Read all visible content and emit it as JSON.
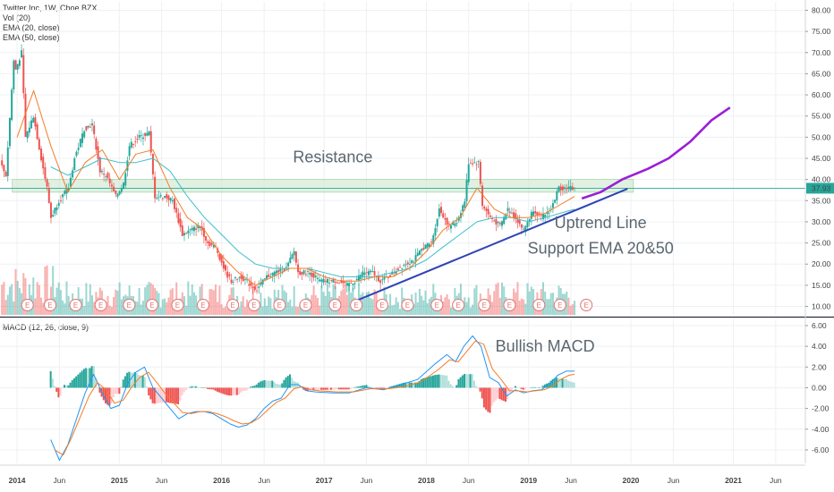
{
  "header": {
    "symbol_line": "Twitter Inc, 1W, Cboe BZX",
    "indicators": [
      "Vol (20)",
      "EMA (20, close)",
      "EMA (50, close)"
    ],
    "macd_label": "MACD (12, 26, close, 9)"
  },
  "colors": {
    "up": "#26a69a",
    "down": "#ef5350",
    "ema20": "#f57c28",
    "ema50": "#3fbfc9",
    "trendline": "#2f44b5",
    "projection": "#9b1fd6",
    "macd_line": "#2196f3",
    "signal_line": "#f57c28",
    "resistance_zone": "#c8e6c9",
    "price_tag": "#26a69a"
  },
  "chart_data": [
    {
      "type": "candlestick",
      "title": "Twitter Inc, 1W, Cboe BZX",
      "ylim": [
        8,
        82
      ],
      "yticks": [
        10,
        15,
        20,
        25,
        30,
        35,
        40,
        45,
        50,
        55,
        60,
        65,
        70,
        75,
        80
      ],
      "ytick_labels": [
        "10.00",
        "15.00",
        "20.00",
        "25.00",
        "30.00",
        "35.00",
        "40.00",
        "45.00",
        "50.00",
        "55.00",
        "60.00",
        "65.00",
        "70.00",
        "75.00",
        "80.00"
      ],
      "xlim": [
        "2013-11-01",
        "2021-09-15"
      ],
      "xticks": [
        {
          "date": "2014-01-01",
          "label": "2014"
        },
        {
          "date": "2014-06-01",
          "label": "Jun"
        },
        {
          "date": "2015-01-01",
          "label": "2015"
        },
        {
          "date": "2015-06-01",
          "label": "Jun"
        },
        {
          "date": "2016-01-01",
          "label": "2016"
        },
        {
          "date": "2016-06-01",
          "label": "Jun"
        },
        {
          "date": "2017-01-01",
          "label": "2017"
        },
        {
          "date": "2017-06-01",
          "label": "Jun"
        },
        {
          "date": "2018-01-01",
          "label": "2018"
        },
        {
          "date": "2018-06-01",
          "label": "Jun"
        },
        {
          "date": "2019-01-01",
          "label": "2019"
        },
        {
          "date": "2019-06-01",
          "label": "Jun"
        },
        {
          "date": "2020-01-01",
          "label": "2020"
        },
        {
          "date": "2020-06-01",
          "label": "Jun"
        },
        {
          "date": "2021-01-01",
          "label": "2021"
        },
        {
          "date": "2021-06-01",
          "label": "Jun"
        }
      ],
      "price_path": [
        [
          "2013-11-08",
          44
        ],
        [
          "2013-11-29",
          41
        ],
        [
          "2013-12-27",
          68
        ],
        [
          "2014-01-03",
          66
        ],
        [
          "2014-01-24",
          70
        ],
        [
          "2014-02-07",
          50
        ],
        [
          "2014-03-07",
          55
        ],
        [
          "2014-04-04",
          45
        ],
        [
          "2014-04-25",
          38
        ],
        [
          "2014-05-09",
          31
        ],
        [
          "2014-06-06",
          35
        ],
        [
          "2014-07-11",
          38
        ],
        [
          "2014-08-01",
          45
        ],
        [
          "2014-09-05",
          52
        ],
        [
          "2014-10-03",
          53
        ],
        [
          "2014-10-31",
          42
        ],
        [
          "2014-11-21",
          41
        ],
        [
          "2014-12-26",
          36
        ],
        [
          "2015-01-23",
          39
        ],
        [
          "2015-02-13",
          48
        ],
        [
          "2015-03-20",
          50
        ],
        [
          "2015-04-24",
          51
        ],
        [
          "2015-05-15",
          36
        ],
        [
          "2015-06-19",
          36
        ],
        [
          "2015-07-17",
          35
        ],
        [
          "2015-08-21",
          27
        ],
        [
          "2015-09-18",
          28
        ],
        [
          "2015-10-23",
          29
        ],
        [
          "2015-11-20",
          25
        ],
        [
          "2015-12-18",
          24
        ],
        [
          "2016-01-22",
          18
        ],
        [
          "2016-02-12",
          16
        ],
        [
          "2016-03-18",
          17
        ],
        [
          "2016-04-22",
          15
        ],
        [
          "2016-05-13",
          14
        ],
        [
          "2016-06-17",
          17
        ],
        [
          "2016-07-15",
          18
        ],
        [
          "2016-08-26",
          19
        ],
        [
          "2016-09-23",
          23
        ],
        [
          "2016-10-07",
          18
        ],
        [
          "2016-11-18",
          18
        ],
        [
          "2016-12-23",
          16
        ],
        [
          "2017-01-27",
          16
        ],
        [
          "2017-02-24",
          16
        ],
        [
          "2017-03-31",
          15
        ],
        [
          "2017-04-28",
          16
        ],
        [
          "2017-05-26",
          18
        ],
        [
          "2017-06-30",
          18
        ],
        [
          "2017-07-28",
          16
        ],
        [
          "2017-08-25",
          17
        ],
        [
          "2017-10-20",
          20
        ],
        [
          "2017-11-24",
          21
        ],
        [
          "2017-12-29",
          24
        ],
        [
          "2018-01-26",
          25
        ],
        [
          "2018-02-23",
          33
        ],
        [
          "2018-03-30",
          29
        ],
        [
          "2018-04-27",
          30
        ],
        [
          "2018-05-25",
          35
        ],
        [
          "2018-06-08",
          44
        ],
        [
          "2018-07-13",
          44
        ],
        [
          "2018-07-27",
          34
        ],
        [
          "2018-08-24",
          31
        ],
        [
          "2018-09-28",
          29
        ],
        [
          "2018-10-26",
          33
        ],
        [
          "2018-11-23",
          31
        ],
        [
          "2018-12-21",
          28
        ],
        [
          "2019-01-25",
          33
        ],
        [
          "2019-02-22",
          31
        ],
        [
          "2019-03-29",
          33
        ],
        [
          "2019-04-26",
          38
        ],
        [
          "2019-05-24",
          38
        ],
        [
          "2019-06-14",
          37.93
        ]
      ],
      "ema20": [
        [
          "2014-01-01",
          50
        ],
        [
          "2014-03-01",
          61
        ],
        [
          "2014-05-01",
          48
        ],
        [
          "2014-07-01",
          37
        ],
        [
          "2014-09-01",
          44
        ],
        [
          "2014-11-01",
          47
        ],
        [
          "2015-01-01",
          40
        ],
        [
          "2015-03-01",
          46
        ],
        [
          "2015-05-01",
          47
        ],
        [
          "2015-07-01",
          38
        ],
        [
          "2015-09-01",
          31
        ],
        [
          "2015-11-01",
          28
        ],
        [
          "2016-01-01",
          22
        ],
        [
          "2016-03-01",
          18
        ],
        [
          "2016-05-01",
          15
        ],
        [
          "2016-07-01",
          17
        ],
        [
          "2016-09-01",
          19
        ],
        [
          "2016-11-01",
          19
        ],
        [
          "2017-01-01",
          17
        ],
        [
          "2017-03-01",
          16
        ],
        [
          "2017-05-01",
          16
        ],
        [
          "2017-07-01",
          17
        ],
        [
          "2017-09-01",
          17
        ],
        [
          "2017-11-01",
          19
        ],
        [
          "2018-01-01",
          23
        ],
        [
          "2018-03-01",
          28
        ],
        [
          "2018-05-01",
          31
        ],
        [
          "2018-07-01",
          38
        ],
        [
          "2018-09-01",
          33
        ],
        [
          "2018-11-01",
          31
        ],
        [
          "2019-01-01",
          31
        ],
        [
          "2019-03-01",
          32
        ],
        [
          "2019-06-14",
          36
        ]
      ],
      "ema50": [
        [
          "2014-05-01",
          43
        ],
        [
          "2014-07-01",
          41
        ],
        [
          "2014-09-01",
          43
        ],
        [
          "2014-11-01",
          45
        ],
        [
          "2015-01-01",
          44
        ],
        [
          "2015-03-01",
          44
        ],
        [
          "2015-05-01",
          45
        ],
        [
          "2015-07-01",
          42
        ],
        [
          "2015-09-01",
          36
        ],
        [
          "2015-11-01",
          31
        ],
        [
          "2016-01-01",
          27
        ],
        [
          "2016-03-01",
          23
        ],
        [
          "2016-05-01",
          20
        ],
        [
          "2016-07-01",
          19
        ],
        [
          "2016-09-01",
          19
        ],
        [
          "2016-11-01",
          19
        ],
        [
          "2017-01-01",
          18
        ],
        [
          "2017-03-01",
          17
        ],
        [
          "2017-05-01",
          17
        ],
        [
          "2017-07-01",
          17
        ],
        [
          "2017-09-01",
          18
        ],
        [
          "2017-11-01",
          19
        ],
        [
          "2018-01-01",
          21
        ],
        [
          "2018-03-01",
          24
        ],
        [
          "2018-05-01",
          27
        ],
        [
          "2018-07-01",
          30
        ],
        [
          "2018-09-01",
          31
        ],
        [
          "2018-11-01",
          31
        ],
        [
          "2019-01-01",
          30
        ],
        [
          "2019-03-01",
          31
        ],
        [
          "2019-06-14",
          33
        ]
      ],
      "volume": {
        "note": "Vol (20) histogram along bottom of price pane",
        "ranges": [
          [
            "2013-11-01",
            "2014-06-01",
            0.45
          ],
          [
            "2014-06-01",
            "2016-01-01",
            0.3
          ],
          [
            "2016-01-01",
            "2017-06-01",
            0.28
          ],
          [
            "2017-06-01",
            "2018-01-01",
            0.25
          ],
          [
            "2018-01-01",
            "2019-06-14",
            0.3
          ]
        ]
      },
      "earnings_markers": [
        "2014-02-07",
        "2014-04-29",
        "2014-07-29",
        "2014-10-27",
        "2015-02-05",
        "2015-04-28",
        "2015-07-28",
        "2015-10-27",
        "2016-02-10",
        "2016-04-26",
        "2016-07-26",
        "2016-10-27",
        "2017-02-09",
        "2017-04-26",
        "2017-07-27",
        "2017-10-26",
        "2018-02-08",
        "2018-04-25",
        "2018-07-27",
        "2018-10-25",
        "2019-02-07",
        "2019-04-23",
        "2019-07-26"
      ],
      "earnings_label": "E",
      "resistance_zone": {
        "y_range": [
          37,
          40
        ],
        "x_range": [
          "2013-12-15",
          "2020-01-10"
        ]
      },
      "current_price": 37.93,
      "current_price_label": "37.93",
      "trendline": {
        "from": [
          "2017-05-01",
          11.5
        ],
        "to": [
          "2019-12-20",
          37.8
        ]
      },
      "projection": [
        [
          "2019-07-10",
          35.5
        ],
        [
          "2019-09-15",
          37
        ],
        [
          "2019-12-01",
          40
        ],
        [
          "2020-03-01",
          42.5
        ],
        [
          "2020-05-15",
          45
        ],
        [
          "2020-08-01",
          49
        ],
        [
          "2020-10-15",
          54
        ],
        [
          "2020-12-20",
          57
        ]
      ],
      "annotations": [
        {
          "text": "Resistance",
          "x": "2017-02-01",
          "y": 44
        },
        {
          "text": "Uptrend Line",
          "x": "2019-09-15",
          "y": 28.5
        },
        {
          "text": "Support EMA 20&50",
          "x": "2019-09-15",
          "y": 22.5
        }
      ]
    },
    {
      "type": "macd",
      "title": "MACD (12, 26, close, 9)",
      "ylim": [
        -7.3,
        6.6
      ],
      "yticks": [
        -6,
        -4,
        -2,
        0,
        2,
        4,
        6
      ],
      "ytick_labels": [
        "-6.00",
        "-4.00",
        "-2.00",
        "0.00",
        "2.00",
        "4.00",
        "6.00"
      ],
      "macd": [
        [
          "2014-05-01",
          -5.0
        ],
        [
          "2014-06-01",
          -7.0
        ],
        [
          "2014-07-01",
          -5.5
        ],
        [
          "2014-08-01",
          -3.0
        ],
        [
          "2014-09-01",
          -0.5
        ],
        [
          "2014-10-01",
          1.3
        ],
        [
          "2014-11-01",
          -0.5
        ],
        [
          "2014-12-01",
          -2.0
        ],
        [
          "2015-01-01",
          -1.7
        ],
        [
          "2015-02-01",
          0.5
        ],
        [
          "2015-03-01",
          1.5
        ],
        [
          "2015-04-01",
          2.0
        ],
        [
          "2015-05-01",
          0.0
        ],
        [
          "2015-06-01",
          -1.0
        ],
        [
          "2015-07-01",
          -2.0
        ],
        [
          "2015-08-01",
          -3.0
        ],
        [
          "2015-09-01",
          -2.5
        ],
        [
          "2015-10-01",
          -2.3
        ],
        [
          "2015-11-01",
          -2.3
        ],
        [
          "2015-12-01",
          -2.5
        ],
        [
          "2016-01-01",
          -3.0
        ],
        [
          "2016-02-01",
          -3.5
        ],
        [
          "2016-03-01",
          -3.8
        ],
        [
          "2016-04-01",
          -3.6
        ],
        [
          "2016-05-01",
          -3.0
        ],
        [
          "2016-06-01",
          -2.0
        ],
        [
          "2016-07-01",
          -1.3
        ],
        [
          "2016-08-01",
          -1.0
        ],
        [
          "2016-09-01",
          0.3
        ],
        [
          "2016-10-01",
          0.3
        ],
        [
          "2016-11-01",
          -0.3
        ],
        [
          "2016-12-01",
          -0.4
        ],
        [
          "2017-02-01",
          -0.5
        ],
        [
          "2017-04-01",
          -0.5
        ],
        [
          "2017-06-01",
          0.0
        ],
        [
          "2017-08-01",
          -0.2
        ],
        [
          "2017-10-01",
          0.3
        ],
        [
          "2017-12-01",
          0.8
        ],
        [
          "2018-02-01",
          2.3
        ],
        [
          "2018-03-15",
          3.2
        ],
        [
          "2018-04-15",
          2.5
        ],
        [
          "2018-05-15",
          4.0
        ],
        [
          "2018-06-15",
          5.0
        ],
        [
          "2018-07-15",
          4.0
        ],
        [
          "2018-08-15",
          1.0
        ],
        [
          "2018-09-15",
          0.5
        ],
        [
          "2018-10-15",
          -0.8
        ],
        [
          "2018-11-15",
          -0.2
        ],
        [
          "2018-12-15",
          -0.5
        ],
        [
          "2019-01-15",
          -0.3
        ],
        [
          "2019-02-15",
          -0.2
        ],
        [
          "2019-03-15",
          0.3
        ],
        [
          "2019-04-15",
          1.2
        ],
        [
          "2019-05-15",
          1.6
        ],
        [
          "2019-06-14",
          1.6
        ]
      ],
      "signal": [
        [
          "2014-05-15",
          -6.0
        ],
        [
          "2014-06-15",
          -6.5
        ],
        [
          "2014-07-15",
          -4.8
        ],
        [
          "2014-08-15",
          -2.8
        ],
        [
          "2014-09-15",
          -0.8
        ],
        [
          "2014-10-15",
          0.5
        ],
        [
          "2014-11-15",
          -0.2
        ],
        [
          "2014-12-15",
          -1.5
        ],
        [
          "2015-01-15",
          -1.2
        ],
        [
          "2015-02-15",
          0.1
        ],
        [
          "2015-03-15",
          1.0
        ],
        [
          "2015-04-15",
          1.5
        ],
        [
          "2015-05-15",
          0.5
        ],
        [
          "2015-06-15",
          -0.6
        ],
        [
          "2015-07-15",
          -1.5
        ],
        [
          "2015-08-15",
          -2.4
        ],
        [
          "2015-09-15",
          -2.5
        ],
        [
          "2015-10-15",
          -2.3
        ],
        [
          "2015-11-15",
          -2.3
        ],
        [
          "2015-12-15",
          -2.5
        ],
        [
          "2016-01-15",
          -2.8
        ],
        [
          "2016-02-15",
          -3.2
        ],
        [
          "2016-03-15",
          -3.5
        ],
        [
          "2016-04-15",
          -3.4
        ],
        [
          "2016-05-15",
          -2.9
        ],
        [
          "2016-06-15",
          -2.1
        ],
        [
          "2016-07-15",
          -1.4
        ],
        [
          "2016-08-15",
          -1.0
        ],
        [
          "2016-09-15",
          -0.1
        ],
        [
          "2016-10-15",
          0.1
        ],
        [
          "2016-11-15",
          -0.2
        ],
        [
          "2016-12-15",
          -0.3
        ],
        [
          "2017-02-15",
          -0.4
        ],
        [
          "2017-04-15",
          -0.4
        ],
        [
          "2017-06-15",
          -0.1
        ],
        [
          "2017-08-15",
          -0.1
        ],
        [
          "2017-10-15",
          0.1
        ],
        [
          "2017-12-15",
          0.6
        ],
        [
          "2018-02-15",
          1.8
        ],
        [
          "2018-03-25",
          2.7
        ],
        [
          "2018-04-25",
          2.5
        ],
        [
          "2018-05-25",
          3.5
        ],
        [
          "2018-06-25",
          4.5
        ],
        [
          "2018-07-25",
          4.2
        ],
        [
          "2018-08-25",
          1.8
        ],
        [
          "2018-09-25",
          0.8
        ],
        [
          "2018-10-25",
          -0.3
        ],
        [
          "2018-11-25",
          -0.3
        ],
        [
          "2018-12-25",
          -0.4
        ],
        [
          "2019-01-25",
          -0.3
        ],
        [
          "2019-02-25",
          -0.2
        ],
        [
          "2019-03-25",
          0.1
        ],
        [
          "2019-04-25",
          0.8
        ],
        [
          "2019-05-25",
          1.2
        ],
        [
          "2019-06-14",
          1.3
        ]
      ],
      "annotations": [
        {
          "text": "Bullish MACD",
          "x": "2019-03-01",
          "y": 3.5
        }
      ]
    }
  ]
}
